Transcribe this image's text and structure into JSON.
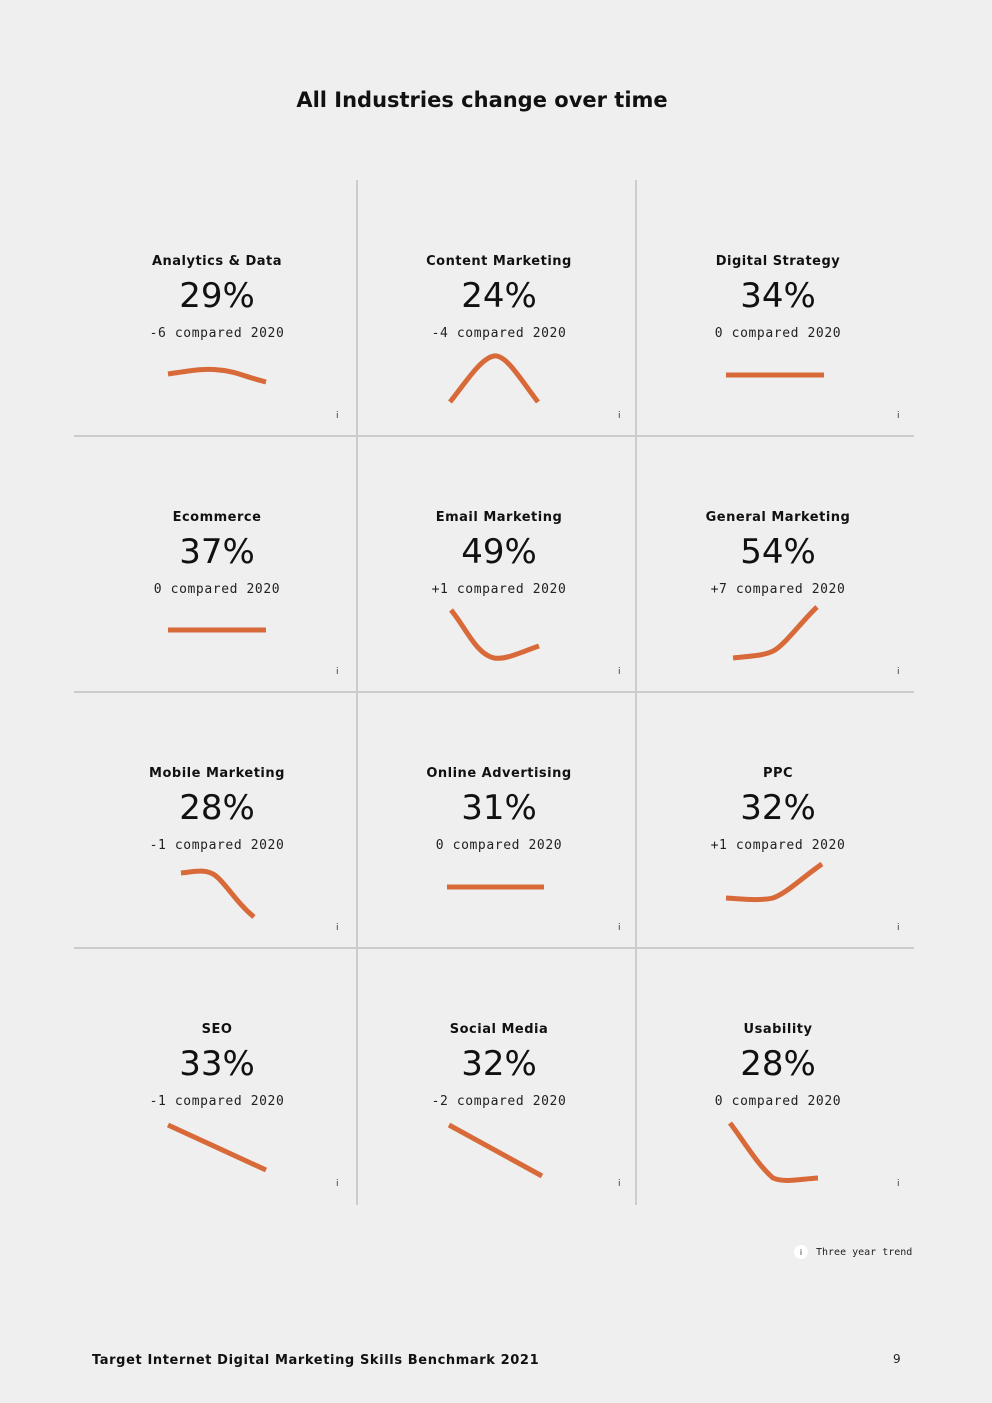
{
  "page_title": "All Industries change over time",
  "info_icon": "i",
  "cards": [
    {
      "name": "Analytics & Data",
      "value": "29%",
      "compare": "-6 compared 2020",
      "trend": "arch-down"
    },
    {
      "name": "Content Marketing",
      "value": "24%",
      "compare": "-4 compared 2020",
      "trend": "peak"
    },
    {
      "name": "Digital Strategy",
      "value": "34%",
      "compare": "0 compared 2020",
      "trend": "flat"
    },
    {
      "name": "Ecommerce",
      "value": "37%",
      "compare": "0 compared 2020",
      "trend": "flat"
    },
    {
      "name": "Email Marketing",
      "value": "49%",
      "compare": "+1 compared 2020",
      "trend": "dip-recover"
    },
    {
      "name": "General Marketing",
      "value": "54%",
      "compare": "+7 compared 2020",
      "trend": "rising"
    },
    {
      "name": "Mobile Marketing",
      "value": "28%",
      "compare": "-1 compared 2020",
      "trend": "falling"
    },
    {
      "name": "Online Advertising",
      "value": "31%",
      "compare": "0 compared 2020",
      "trend": "flat"
    },
    {
      "name": "PPC",
      "value": "32%",
      "compare": "+1 compared 2020",
      "trend": "rising"
    },
    {
      "name": "SEO",
      "value": "33%",
      "compare": "-1 compared 2020",
      "trend": "declining"
    },
    {
      "name": "Social Media",
      "value": "32%",
      "compare": "-2 compared 2020",
      "trend": "declining"
    },
    {
      "name": "Usability",
      "value": "28%",
      "compare": "0 compared 2020",
      "trend": "drop-flat"
    }
  ],
  "legend": {
    "icon": "i",
    "label": "Three year trend"
  },
  "footer": {
    "title": "Target Internet Digital Marketing Skills Benchmark 2021",
    "page_number": "9"
  },
  "colors": {
    "trend_line": "#d86a3a",
    "background": "#efefef",
    "grid_line": "#cccccc"
  }
}
